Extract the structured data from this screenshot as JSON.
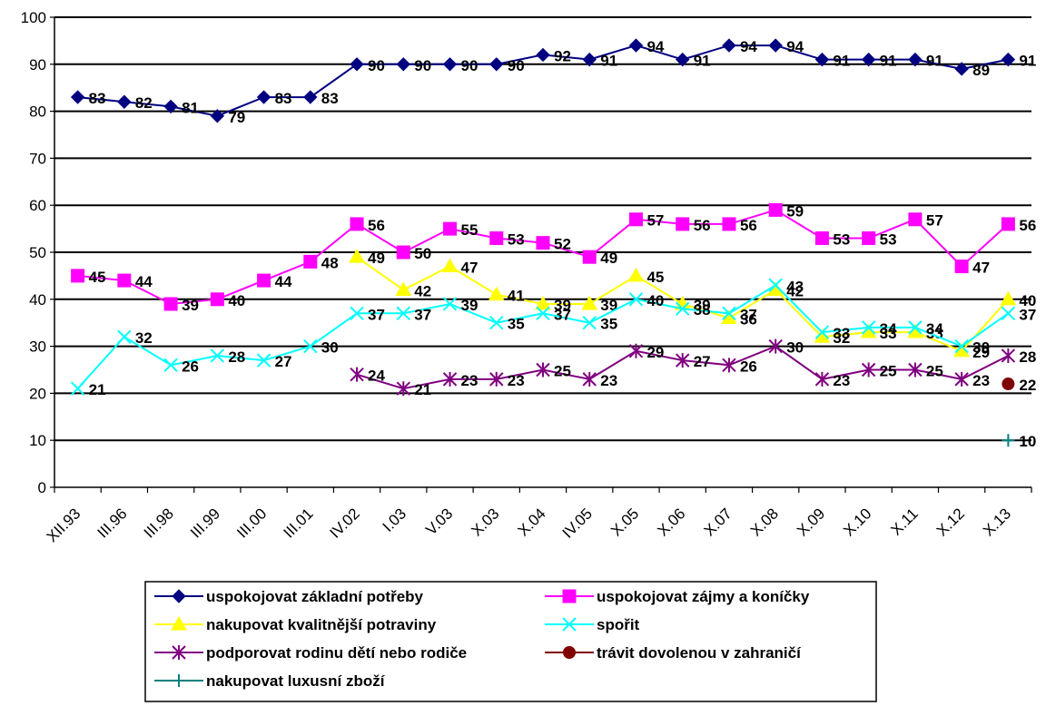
{
  "chart_data": {
    "type": "line",
    "categories": [
      "XII.93",
      "III.96",
      "III.98",
      "III.99",
      "III.00",
      "III.01",
      "IV.02",
      "I.03",
      "V.03",
      "X.03",
      "X.04",
      "IV.05",
      "X.05",
      "X.06",
      "X.07",
      "X.08",
      "X.09",
      "X.10",
      "X.11",
      "X.12",
      "X.13"
    ],
    "ylim": [
      0,
      100
    ],
    "yticks": [
      0,
      10,
      20,
      30,
      40,
      50,
      60,
      70,
      80,
      90,
      100
    ],
    "grid": true,
    "legend_position": "bottom",
    "series": [
      {
        "name": "uspokojovat základní potřeby",
        "color": "#000080",
        "marker": "diamond",
        "values": [
          83,
          82,
          81,
          79,
          83,
          83,
          90,
          90,
          90,
          90,
          92,
          91,
          94,
          91,
          94,
          94,
          91,
          91,
          91,
          89,
          91
        ]
      },
      {
        "name": "uspokojovat zájmy a koníčky",
        "color": "#FF00FF",
        "marker": "square",
        "values": [
          45,
          44,
          39,
          40,
          44,
          48,
          56,
          50,
          55,
          53,
          52,
          49,
          57,
          56,
          56,
          59,
          53,
          53,
          57,
          47,
          56
        ]
      },
      {
        "name": "nakupovat kvalitnější potraviny",
        "color": "#FFFF00",
        "marker": "triangle",
        "values": [
          null,
          null,
          null,
          null,
          null,
          null,
          49,
          42,
          47,
          41,
          39,
          39,
          45,
          39,
          36,
          42,
          32,
          33,
          33,
          29,
          40
        ]
      },
      {
        "name": "spořit",
        "color": "#00FFFF",
        "marker": "x",
        "values": [
          21,
          32,
          26,
          28,
          27,
          30,
          37,
          37,
          39,
          35,
          37,
          35,
          40,
          38,
          37,
          43,
          33,
          34,
          34,
          30,
          37
        ]
      },
      {
        "name": "podporovat rodinu dětí nebo rodiče",
        "color": "#800080",
        "marker": "star",
        "values": [
          null,
          null,
          null,
          null,
          null,
          null,
          24,
          21,
          23,
          23,
          25,
          23,
          29,
          27,
          26,
          30,
          23,
          25,
          25,
          23,
          28
        ]
      },
      {
        "name": "trávit dovolenou v zahraničí",
        "color": "#800000",
        "marker": "circle",
        "values": [
          null,
          null,
          null,
          null,
          null,
          null,
          null,
          null,
          null,
          null,
          null,
          null,
          null,
          null,
          null,
          null,
          null,
          null,
          null,
          null,
          22
        ]
      },
      {
        "name": "nakupovat luxusní zboží",
        "color": "#008080",
        "marker": "plus",
        "values": [
          null,
          null,
          null,
          null,
          null,
          null,
          null,
          null,
          null,
          null,
          null,
          null,
          null,
          null,
          null,
          null,
          null,
          null,
          null,
          null,
          10
        ]
      }
    ]
  }
}
